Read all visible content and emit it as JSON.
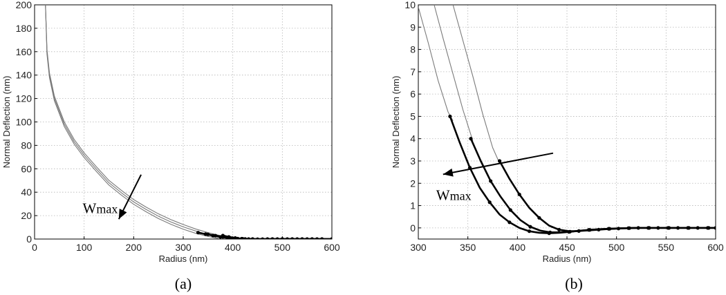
{
  "chart_data": [
    {
      "id": "a",
      "type": "line",
      "panel_label": "(a)",
      "xlabel": "Radius (nm)",
      "ylabel": "Normal Deflection (nm)",
      "xlim": [
        0,
        600
      ],
      "ylim": [
        0,
        200
      ],
      "xticks": [
        0,
        100,
        200,
        300,
        400,
        500,
        600
      ],
      "yticks": [
        0,
        20,
        40,
        60,
        80,
        100,
        120,
        140,
        160,
        180,
        200
      ],
      "grid": true,
      "annotation": {
        "text": "W",
        "subscript": "max",
        "arrow_from": [
          215,
          55
        ],
        "arrow_to": [
          170,
          17
        ],
        "text_at": [
          97,
          22
        ]
      },
      "series": [
        {
          "style": "thin",
          "x": [
            22,
            25,
            30,
            40,
            60,
            80,
            100,
            125,
            150,
            175,
            200,
            225,
            250,
            275,
            300,
            325,
            350,
            372
          ],
          "y": [
            200,
            158,
            138,
            118,
            96,
            81,
            69.6,
            57.6,
            46.1,
            37.6,
            29.7,
            23.3,
            17.5,
            12.6,
            8.4,
            4.9,
            2.2,
            0.4
          ]
        },
        {
          "style": "thin",
          "x": [
            22,
            25,
            30,
            40,
            60,
            80,
            100,
            125,
            150,
            175,
            200,
            225,
            250,
            275,
            300,
            325,
            350,
            380,
            388
          ],
          "y": [
            200,
            160,
            140,
            120,
            98,
            83,
            71.6,
            59.6,
            48.1,
            39.6,
            31.7,
            25.3,
            19.5,
            14.6,
            10.4,
            6.9,
            3.8,
            1.2,
            0.6
          ]
        },
        {
          "style": "thin",
          "x": [
            22,
            25,
            30,
            40,
            60,
            80,
            100,
            125,
            150,
            175,
            200,
            225,
            250,
            275,
            300,
            325,
            350,
            380,
            400
          ],
          "y": [
            200,
            162,
            142,
            122,
            100,
            85,
            73.6,
            61.6,
            50.1,
            41.6,
            33.7,
            27.3,
            21.5,
            16.6,
            12.4,
            8.6,
            5.5,
            2.4,
            0.5
          ]
        },
        {
          "style": "thick",
          "x": [
            330,
            345,
            360,
            375,
            390,
            405,
            420,
            440,
            460,
            480,
            500,
            520,
            540,
            560,
            580,
            600
          ],
          "y": [
            5.5,
            4.2,
            2.9,
            1.8,
            1.0,
            0.5,
            0.2,
            0.0,
            -0.1,
            0.0,
            0.0,
            0.0,
            0.0,
            0.0,
            0.0,
            0.0
          ]
        },
        {
          "style": "thick",
          "x": [
            350,
            365,
            380,
            395,
            410,
            425,
            440,
            460,
            480,
            500,
            520,
            540,
            560,
            580,
            600
          ],
          "y": [
            4.0,
            2.9,
            1.9,
            1.0,
            0.4,
            0.1,
            0.0,
            -0.1,
            0.0,
            0.0,
            0.0,
            0.0,
            0.0,
            0.0,
            0.0
          ]
        },
        {
          "style": "thick",
          "x": [
            380,
            392,
            405,
            418,
            432,
            450,
            470,
            490,
            510,
            530,
            550,
            570,
            600
          ],
          "y": [
            3.0,
            1.8,
            0.9,
            0.3,
            0.0,
            -0.1,
            0.0,
            0.0,
            0.0,
            0.0,
            0.0,
            0.0,
            0.0
          ]
        }
      ]
    },
    {
      "id": "b",
      "type": "line",
      "panel_label": "(b)",
      "xlabel": "Radius (nm)",
      "ylabel": "Normal Deflection (nm)",
      "xlim": [
        300,
        600
      ],
      "ylim": [
        -0.5,
        10
      ],
      "xticks": [
        300,
        350,
        400,
        450,
        500,
        550,
        600
      ],
      "yticks": [
        0,
        1,
        2,
        3,
        4,
        5,
        6,
        7,
        8,
        9,
        10
      ],
      "grid": true,
      "annotation": {
        "text": "W",
        "subscript": "max",
        "arrow_from": [
          436,
          3.35
        ],
        "arrow_to": [
          325,
          2.4
        ],
        "text_at": [
          318,
          1.25
        ]
      },
      "series": [
        {
          "style": "thin",
          "x": [
            300,
            310,
            320,
            330,
            335
          ],
          "y": [
            9.9,
            8.3,
            6.6,
            5.2,
            4.8
          ]
        },
        {
          "style": "thin",
          "x": [
            316,
            325,
            335,
            345,
            355
          ],
          "y": [
            10.0,
            8.5,
            6.9,
            5.3,
            3.9
          ]
        },
        {
          "style": "thin",
          "x": [
            335,
            345,
            355,
            365,
            375,
            382
          ],
          "y": [
            10.0,
            8.4,
            6.8,
            5.1,
            3.6,
            2.9
          ]
        },
        {
          "style": "thick",
          "x": [
            332,
            342,
            352,
            362,
            372,
            382,
            392,
            402,
            412,
            422,
            432,
            442,
            452,
            462,
            472,
            482,
            492,
            502,
            512,
            522,
            532,
            542,
            552,
            562,
            572,
            582,
            592,
            600
          ],
          "y": [
            5.0,
            3.8,
            2.7,
            1.8,
            1.15,
            0.6,
            0.25,
            0.0,
            -0.15,
            -0.22,
            -0.24,
            -0.22,
            -0.18,
            -0.13,
            -0.09,
            -0.06,
            -0.04,
            -0.02,
            -0.01,
            0.0,
            0.0,
            0.0,
            0.0,
            0.0,
            0.0,
            0.0,
            0.0,
            0.0
          ]
        },
        {
          "style": "thick",
          "x": [
            353,
            363,
            373,
            383,
            393,
            403,
            413,
            423,
            433,
            443,
            453,
            463,
            473,
            483,
            493,
            503,
            513,
            523,
            533,
            543,
            553,
            563,
            573,
            583,
            593,
            600
          ],
          "y": [
            4.0,
            3.0,
            2.1,
            1.4,
            0.8,
            0.35,
            0.05,
            -0.12,
            -0.2,
            -0.2,
            -0.17,
            -0.13,
            -0.09,
            -0.06,
            -0.04,
            -0.02,
            -0.01,
            0.0,
            0.0,
            0.0,
            0.0,
            0.0,
            0.0,
            0.0,
            0.0,
            0.0
          ]
        },
        {
          "style": "thick",
          "x": [
            382,
            392,
            402,
            412,
            422,
            432,
            442,
            452,
            462,
            472,
            482,
            492,
            502,
            512,
            522,
            532,
            542,
            552,
            562,
            572,
            582,
            592,
            600
          ],
          "y": [
            3.0,
            2.2,
            1.5,
            0.9,
            0.45,
            0.1,
            -0.08,
            -0.15,
            -0.14,
            -0.11,
            -0.08,
            -0.05,
            -0.03,
            -0.01,
            0.0,
            0.0,
            0.0,
            0.0,
            0.0,
            0.0,
            0.0,
            0.0,
            0.0
          ]
        }
      ]
    }
  ]
}
